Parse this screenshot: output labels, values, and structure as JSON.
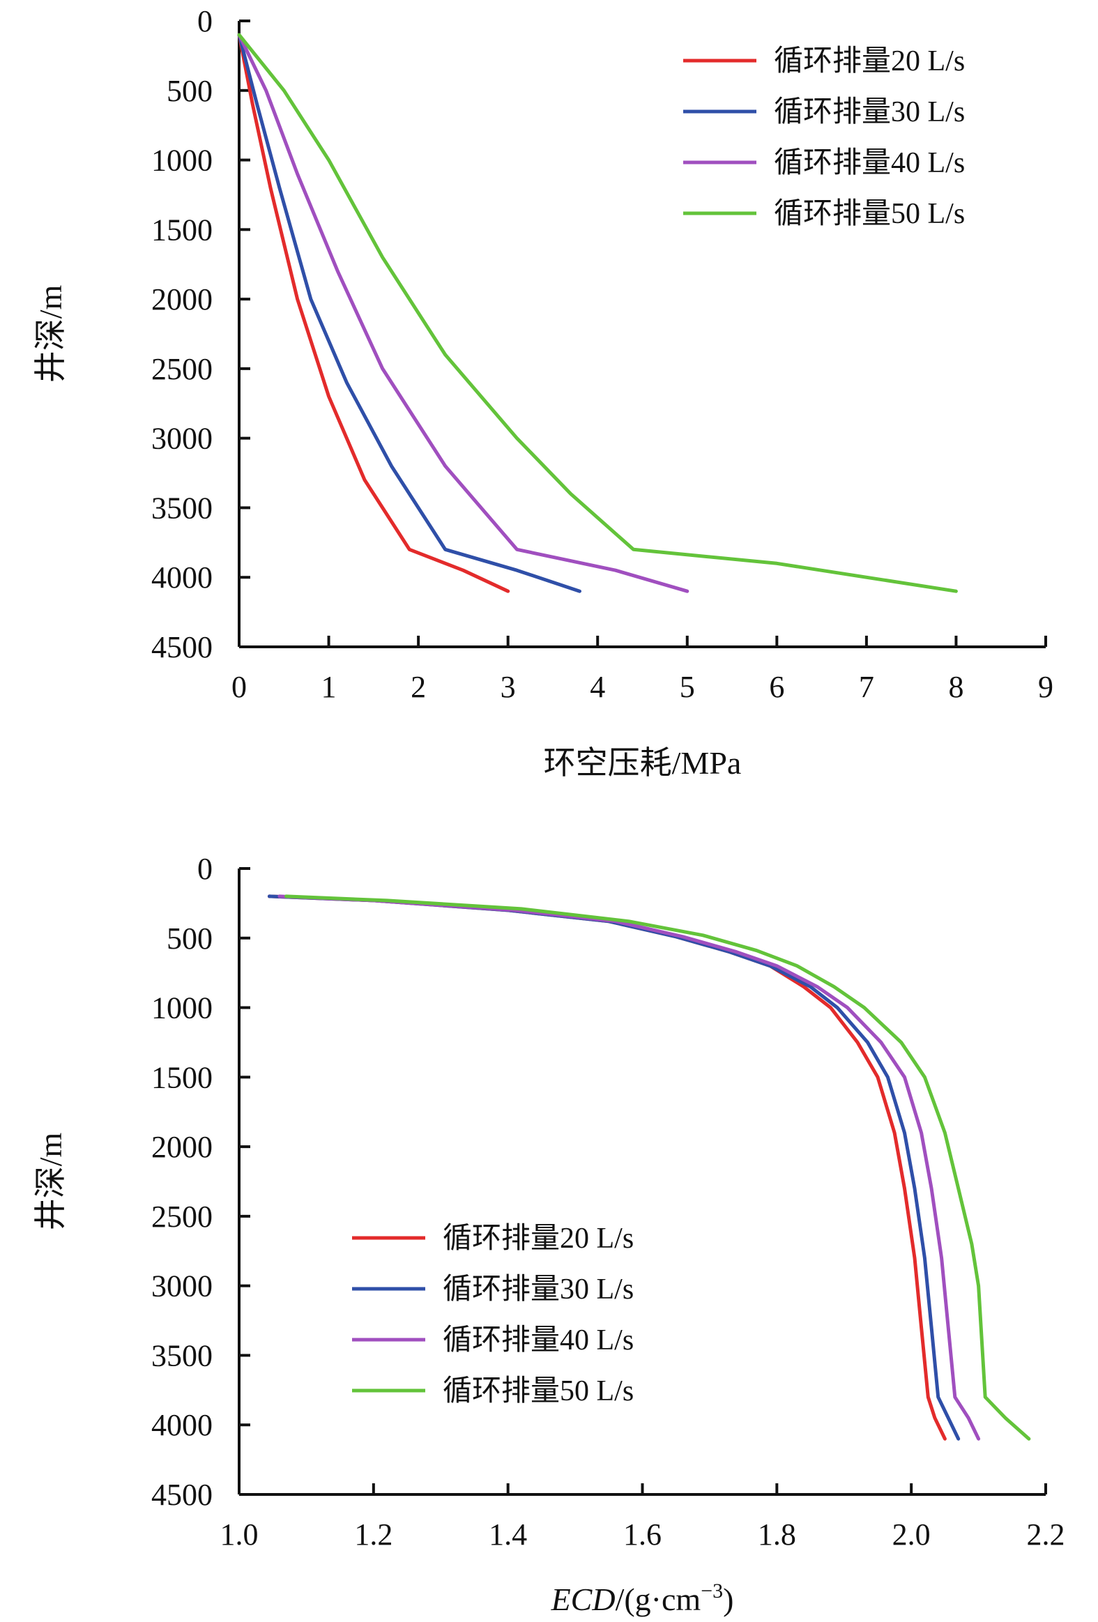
{
  "colors": {
    "series": [
      "#e32b2b",
      "#2f4fa8",
      "#a04fbf",
      "#63c33a"
    ]
  },
  "chart_data": [
    {
      "type": "line",
      "orientation": "depth-down",
      "xlabel": "环空压耗/MPa",
      "ylabel": "井深/m",
      "xlim": [
        0,
        9
      ],
      "ylim": [
        4500,
        0
      ],
      "x_ticks": [
        "0",
        "1",
        "2",
        "3",
        "4",
        "5",
        "6",
        "7",
        "8",
        "9"
      ],
      "y_ticks": [
        "0",
        "500",
        "1000",
        "1500",
        "2000",
        "2500",
        "3000",
        "3500",
        "4000",
        "4500"
      ],
      "grid": false,
      "legend_position": "top-right",
      "series": [
        {
          "name": "循环排量20 L/s",
          "points": [
            [
              0.0,
              100
            ],
            [
              0.15,
              600
            ],
            [
              0.35,
              1200
            ],
            [
              0.65,
              2000
            ],
            [
              1.0,
              2700
            ],
            [
              1.4,
              3300
            ],
            [
              1.9,
              3800
            ],
            [
              2.5,
              3950
            ],
            [
              3.0,
              4100
            ]
          ]
        },
        {
          "name": "循环排量30 L/s",
          "points": [
            [
              0.0,
              100
            ],
            [
              0.2,
              600
            ],
            [
              0.45,
              1200
            ],
            [
              0.8,
              2000
            ],
            [
              1.2,
              2600
            ],
            [
              1.7,
              3200
            ],
            [
              2.3,
              3800
            ],
            [
              3.1,
              3950
            ],
            [
              3.8,
              4100
            ]
          ]
        },
        {
          "name": "循环排量40 L/s",
          "points": [
            [
              0.0,
              100
            ],
            [
              0.3,
              500
            ],
            [
              0.65,
              1100
            ],
            [
              1.1,
              1800
            ],
            [
              1.6,
              2500
            ],
            [
              2.3,
              3200
            ],
            [
              3.1,
              3800
            ],
            [
              4.2,
              3950
            ],
            [
              5.0,
              4100
            ]
          ]
        },
        {
          "name": "循环排量50 L/s",
          "points": [
            [
              0.0,
              100
            ],
            [
              0.5,
              500
            ],
            [
              1.0,
              1000
            ],
            [
              1.6,
              1700
            ],
            [
              2.3,
              2400
            ],
            [
              3.1,
              3000
            ],
            [
              3.7,
              3400
            ],
            [
              4.4,
              3800
            ],
            [
              6.0,
              3900
            ],
            [
              8.0,
              4100
            ]
          ]
        }
      ]
    },
    {
      "type": "line",
      "orientation": "depth-down",
      "xlabel": "ECD/(g·cm⁻³)",
      "ylabel": "井深/m",
      "xlim": [
        1.0,
        2.2
      ],
      "ylim": [
        4500,
        0
      ],
      "x_ticks": [
        "1.0",
        "1.2",
        "1.4",
        "1.6",
        "1.8",
        "2.0",
        "2.2"
      ],
      "y_ticks": [
        "0",
        "500",
        "1000",
        "1500",
        "2000",
        "2500",
        "3000",
        "3500",
        "4000",
        "4500"
      ],
      "grid": false,
      "legend_position": "bottom-left",
      "series": [
        {
          "name": "循环排量20 L/s",
          "points": [
            [
              1.045,
              200
            ],
            [
              1.2,
              230
            ],
            [
              1.4,
              300
            ],
            [
              1.55,
              380
            ],
            [
              1.65,
              490
            ],
            [
              1.73,
              600
            ],
            [
              1.79,
              700
            ],
            [
              1.84,
              850
            ],
            [
              1.88,
              1000
            ],
            [
              1.92,
              1250
            ],
            [
              1.95,
              1500
            ],
            [
              1.975,
              1900
            ],
            [
              1.99,
              2300
            ],
            [
              2.005,
              2800
            ],
            [
              2.015,
              3300
            ],
            [
              2.025,
              3800
            ],
            [
              2.035,
              3950
            ],
            [
              2.05,
              4100
            ]
          ]
        },
        {
          "name": "循环排量30 L/s",
          "points": [
            [
              1.045,
              200
            ],
            [
              1.2,
              230
            ],
            [
              1.4,
              300
            ],
            [
              1.55,
              380
            ],
            [
              1.65,
              490
            ],
            [
              1.73,
              600
            ],
            [
              1.79,
              700
            ],
            [
              1.85,
              850
            ],
            [
              1.89,
              1000
            ],
            [
              1.935,
              1250
            ],
            [
              1.965,
              1500
            ],
            [
              1.99,
              1900
            ],
            [
              2.005,
              2300
            ],
            [
              2.02,
              2800
            ],
            [
              2.03,
              3300
            ],
            [
              2.04,
              3800
            ],
            [
              2.055,
              3950
            ],
            [
              2.07,
              4100
            ]
          ]
        },
        {
          "name": "循环排量40 L/s",
          "points": [
            [
              1.06,
              200
            ],
            [
              1.2,
              230
            ],
            [
              1.41,
              300
            ],
            [
              1.56,
              380
            ],
            [
              1.66,
              490
            ],
            [
              1.74,
              600
            ],
            [
              1.8,
              700
            ],
            [
              1.86,
              850
            ],
            [
              1.905,
              1000
            ],
            [
              1.955,
              1250
            ],
            [
              1.99,
              1500
            ],
            [
              2.015,
              1900
            ],
            [
              2.03,
              2300
            ],
            [
              2.045,
              2800
            ],
            [
              2.055,
              3300
            ],
            [
              2.065,
              3800
            ],
            [
              2.085,
              3950
            ],
            [
              2.1,
              4100
            ]
          ]
        },
        {
          "name": "循环排量50 L/s",
          "points": [
            [
              1.07,
              200
            ],
            [
              1.22,
              230
            ],
            [
              1.42,
              290
            ],
            [
              1.58,
              380
            ],
            [
              1.69,
              480
            ],
            [
              1.77,
              590
            ],
            [
              1.83,
              700
            ],
            [
              1.885,
              850
            ],
            [
              1.93,
              1000
            ],
            [
              1.985,
              1250
            ],
            [
              2.02,
              1500
            ],
            [
              2.05,
              1900
            ],
            [
              2.07,
              2300
            ],
            [
              2.09,
              2700
            ],
            [
              2.1,
              3000
            ],
            [
              2.105,
              3400
            ],
            [
              2.11,
              3800
            ],
            [
              2.14,
              3950
            ],
            [
              2.175,
              4100
            ]
          ]
        }
      ]
    }
  ]
}
